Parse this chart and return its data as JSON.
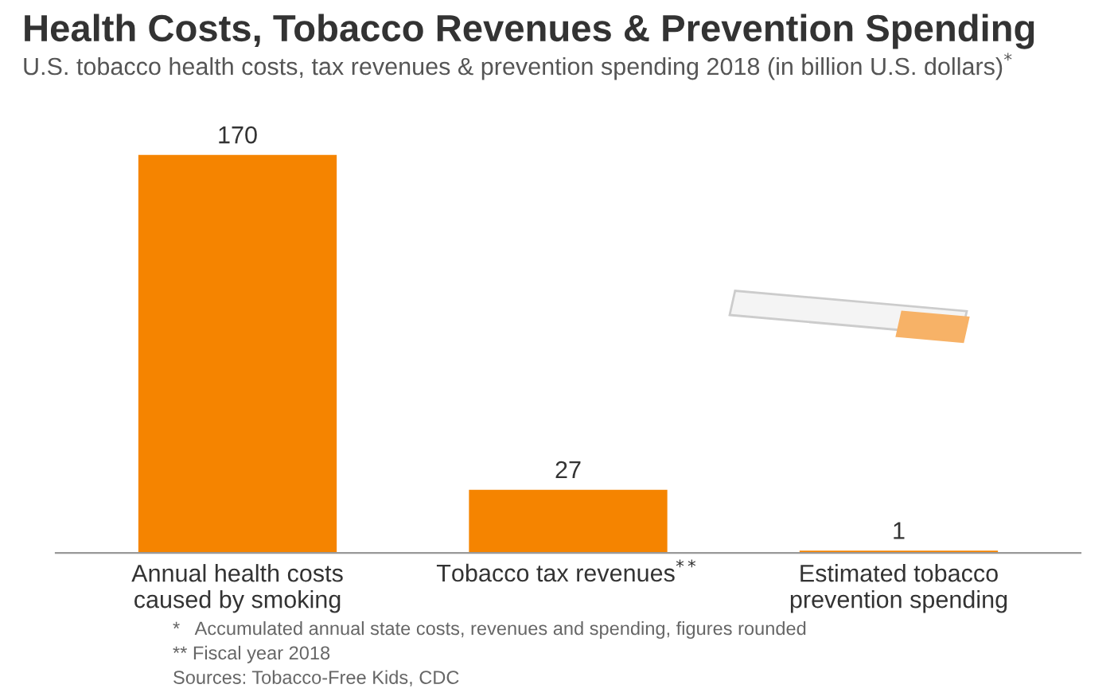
{
  "chart_data": {
    "type": "bar",
    "title": "Health Costs, Tobacco Revenues & Prevention Spending",
    "subtitle": "U.S. tobacco health costs, tax revenues & prevention spending 2018 (in billion U.S. dollars)$^{*}$",
    "categories": [
      "Annual health costs\ncaused by smoking",
      "Tobacco tax revenues$^{**}$",
      "Estimated tobacco\nprevention spending"
    ],
    "values": [
      170,
      27,
      1
    ],
    "color": "#f58400",
    "data_labels": true,
    "grid": false,
    "legend": false,
    "annotations": [
      "*   Accumulated annual state costs, revenues and spending, figures rounded",
      "** Fiscal year 2018",
      "Sources: Tobacco-Free Kids, CDC"
    ]
  }
}
